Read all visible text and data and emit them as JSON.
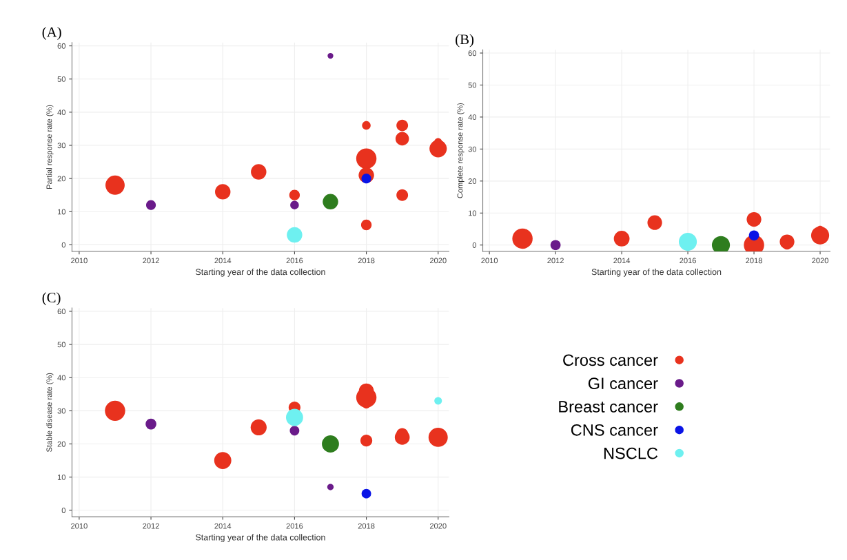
{
  "chart_data": [
    {
      "type": "bubble",
      "title": "(A)",
      "xlabel": "Starting year of the data collection",
      "ylabel": "Partial response rate (%)",
      "xlim": [
        2009.8,
        2020.3
      ],
      "xticks": [
        2010,
        2012,
        2014,
        2016,
        2018,
        2020
      ],
      "ylim": [
        -2,
        61
      ],
      "yticks": [
        0,
        10,
        20,
        30,
        40,
        50,
        60
      ],
      "grid": true,
      "legend": "bottom right",
      "series": [
        {
          "name": "Cross cancer",
          "color": "#e8321e",
          "x": [
            2011,
            2014,
            2015,
            2016,
            2018,
            2018,
            2018,
            2018,
            2019,
            2019,
            2019,
            2020,
            2020
          ],
          "values": [
            18,
            16,
            22,
            15,
            36,
            26,
            21,
            6,
            36,
            32,
            15,
            31,
            29
          ],
          "sizes": [
            0.9,
            0.58,
            0.58,
            0.27,
            0.18,
            1,
            0.58,
            0.27,
            0.33,
            0.44,
            0.33,
            0.15,
            0.73
          ]
        },
        {
          "name": "GI cancer",
          "color": "#6a1b8a",
          "x": [
            2012,
            2016,
            2017
          ],
          "values": [
            12,
            12,
            57
          ],
          "sizes": [
            0.23,
            0.18,
            0.08
          ]
        },
        {
          "name": "Breast cancer",
          "color": "#2e7d1e",
          "x": [
            2017
          ],
          "values": [
            13
          ],
          "sizes": [
            0.58
          ]
        },
        {
          "name": "CNS cancer",
          "color": "#0a14e6",
          "x": [
            2018
          ],
          "values": [
            20
          ],
          "sizes": [
            0.23
          ]
        },
        {
          "name": "NSCLC",
          "color": "#6ef0f0",
          "x": [
            2016
          ],
          "values": [
            3
          ],
          "sizes": [
            0.58
          ]
        }
      ]
    },
    {
      "type": "bubble",
      "title": "(B)",
      "xlabel": "Starting year of the data collection",
      "ylabel": "Complete response rate (%)",
      "xlim": [
        2009.8,
        2020.3
      ],
      "xticks": [
        2010,
        2012,
        2014,
        2016,
        2018,
        2020
      ],
      "ylim": [
        -2,
        61
      ],
      "yticks": [
        0,
        10,
        20,
        30,
        40,
        50,
        60
      ],
      "grid": true,
      "series": [
        {
          "color": "#e8321e",
          "x": [
            2011,
            2014,
            2015,
            2018,
            2018,
            2019,
            2019,
            2020,
            2020
          ],
          "values": [
            2,
            2,
            7,
            8,
            0,
            1,
            0,
            3,
            5
          ],
          "sizes": [
            1,
            0.6,
            0.52,
            0.52,
            1,
            0.52,
            0.2,
            0.79,
            0.11
          ]
        },
        {
          "color": "#6a1b8a",
          "x": [
            2012
          ],
          "values": [
            0
          ],
          "sizes": [
            0.25
          ]
        },
        {
          "color": "#2e7d1e",
          "x": [
            2017
          ],
          "values": [
            0
          ],
          "sizes": [
            0.79
          ]
        },
        {
          "color": "#0a14e6",
          "x": [
            2018
          ],
          "values": [
            3
          ],
          "sizes": [
            0.25
          ]
        },
        {
          "color": "#6ef0f0",
          "x": [
            2016
          ],
          "values": [
            1
          ],
          "sizes": [
            0.79
          ]
        }
      ]
    },
    {
      "type": "bubble",
      "title": "(C)",
      "xlabel": "Starting year of the data collection",
      "ylabel": "Stable disease rate (%)",
      "xlim": [
        2009.8,
        2020.3
      ],
      "xticks": [
        2010,
        2012,
        2014,
        2016,
        2018,
        2020
      ],
      "ylim": [
        -2,
        61
      ],
      "yticks": [
        0,
        10,
        20,
        30,
        40,
        50,
        60
      ],
      "grid": true,
      "series": [
        {
          "color": "#e8321e",
          "x": [
            2011,
            2014,
            2015,
            2016,
            2018,
            2018,
            2018,
            2018,
            2019,
            2019,
            2020
          ],
          "values": [
            30,
            15,
            25,
            31,
            36,
            34,
            32,
            21,
            23,
            22,
            22
          ],
          "sizes": [
            1,
            0.71,
            0.62,
            0.34,
            0.54,
            1,
            0.18,
            0.34,
            0.34,
            0.54,
            0.9
          ]
        },
        {
          "color": "#6a1b8a",
          "x": [
            2012,
            2016,
            2017
          ],
          "values": [
            26,
            24,
            7
          ],
          "sizes": [
            0.28,
            0.22,
            0.1
          ]
        },
        {
          "color": "#2e7d1e",
          "x": [
            2017
          ],
          "values": [
            20
          ],
          "sizes": [
            0.71
          ]
        },
        {
          "color": "#0a14e6",
          "x": [
            2018
          ],
          "values": [
            5
          ],
          "sizes": [
            0.22
          ]
        },
        {
          "color": "#6ef0f0",
          "x": [
            2016,
            2020
          ],
          "values": [
            28,
            33
          ],
          "sizes": [
            0.71,
            0.14
          ]
        }
      ]
    }
  ]
}
